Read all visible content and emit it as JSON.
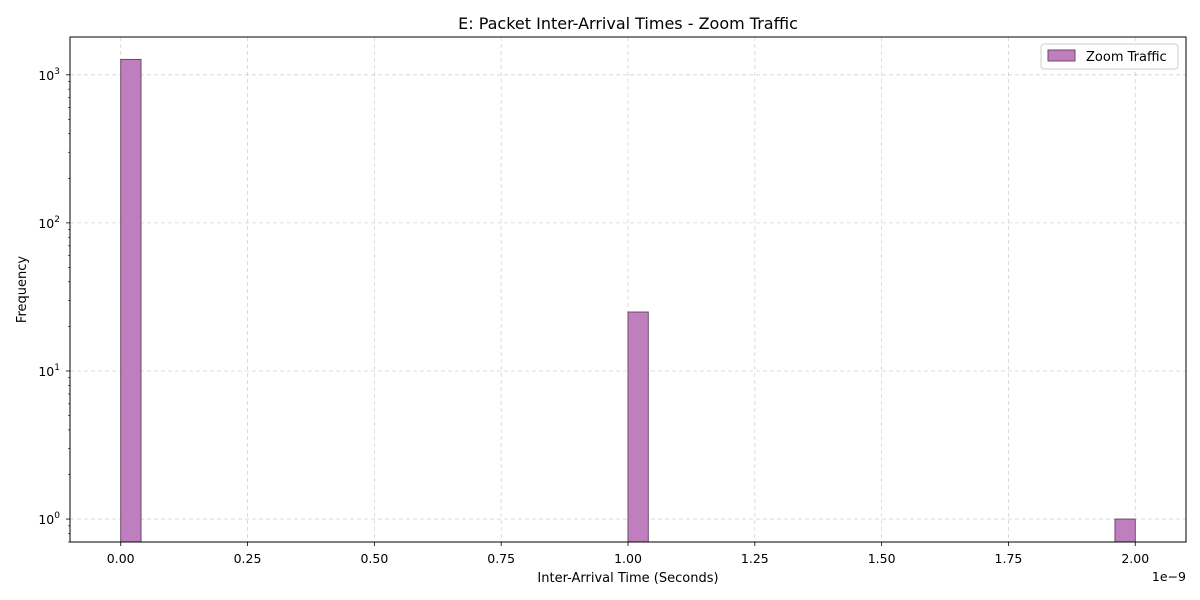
{
  "chart_data": {
    "type": "bar",
    "title": "E: Packet Inter-Arrival Times - Zoom Traffic",
    "xlabel": "Inter-Arrival Time (Seconds)",
    "ylabel": "Frequency",
    "x_offset_text": "1e−9",
    "x_ticks": [
      {
        "value": 0.0,
        "label": "0.00"
      },
      {
        "value": 0.25,
        "label": "0.25"
      },
      {
        "value": 0.5,
        "label": "0.50"
      },
      {
        "value": 0.75,
        "label": "0.75"
      },
      {
        "value": 1.0,
        "label": "1.00"
      },
      {
        "value": 1.25,
        "label": "1.25"
      },
      {
        "value": 1.5,
        "label": "1.50"
      },
      {
        "value": 1.75,
        "label": "1.75"
      },
      {
        "value": 2.0,
        "label": "2.00"
      }
    ],
    "y_ticks": [
      {
        "value": 1,
        "base": "10",
        "exp": "0"
      },
      {
        "value": 10,
        "base": "10",
        "exp": "1"
      },
      {
        "value": 100,
        "base": "10",
        "exp": "2"
      },
      {
        "value": 1000,
        "base": "10",
        "exp": "3"
      }
    ],
    "xlim": [
      -0.1,
      2.1
    ],
    "ylim": [
      0.7,
      1800
    ],
    "yscale": "log",
    "grid": true,
    "legend_position": "top-right",
    "series": [
      {
        "name": "Zoom Traffic",
        "color": "#bf7fbf",
        "edge_color": "#6b4a6b",
        "bins": [
          {
            "x0": 0.0,
            "x1": 0.04,
            "value": 1270
          },
          {
            "x0": 1.0,
            "x1": 1.04,
            "value": 25
          },
          {
            "x0": 1.96,
            "x1": 2.0,
            "value": 1
          }
        ]
      }
    ]
  }
}
